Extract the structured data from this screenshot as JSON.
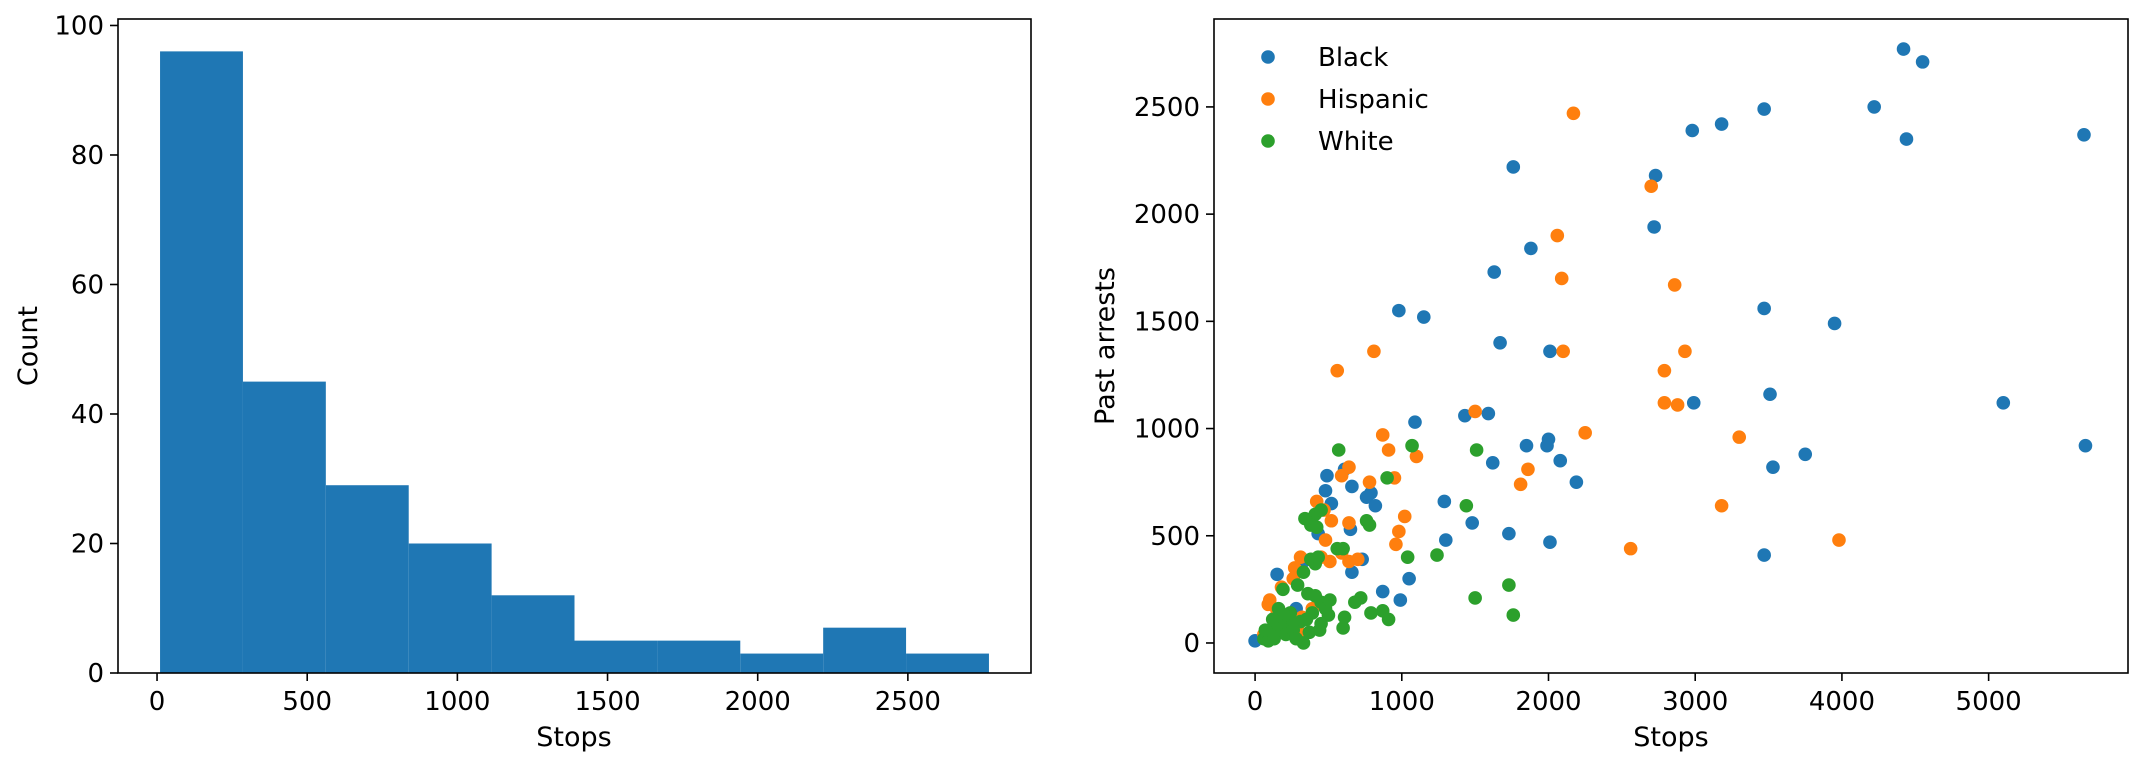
{
  "chart_data": [
    {
      "type": "bar",
      "subtype": "histogram",
      "title": "",
      "xlabel": "Stops",
      "ylabel": "Count",
      "xlim": [
        -130,
        2910
      ],
      "ylim": [
        0,
        101
      ],
      "xticks": [
        0,
        500,
        1000,
        1500,
        2000,
        2500
      ],
      "yticks": [
        0,
        20,
        40,
        60,
        80,
        100
      ],
      "bin_edges": [
        10,
        286,
        562,
        838,
        1114,
        1390,
        1666,
        1942,
        2218,
        2494,
        2770
      ],
      "counts": [
        96,
        45,
        29,
        20,
        12,
        5,
        5,
        3,
        7,
        3
      ],
      "color": "#1f77b4",
      "grid": false
    },
    {
      "type": "scatter",
      "title": "",
      "xlabel": "Stops",
      "ylabel": "Past arrests",
      "xlim": [
        -280,
        5950
      ],
      "ylim": [
        -140,
        2910
      ],
      "xticks": [
        0,
        1000,
        2000,
        3000,
        4000,
        5000
      ],
      "yticks": [
        0,
        500,
        1000,
        1500,
        2000,
        2500
      ],
      "legend_position": "top-left",
      "grid": false,
      "series": [
        {
          "name": "Black",
          "color": "#1f77b4",
          "points": [
            [
              4420,
              2770
            ],
            [
              4550,
              2710
            ],
            [
              4220,
              2500
            ],
            [
              3470,
              2490
            ],
            [
              3180,
              2420
            ],
            [
              2980,
              2390
            ],
            [
              4440,
              2350
            ],
            [
              5650,
              2370
            ],
            [
              1760,
              2220
            ],
            [
              2730,
              2180
            ],
            [
              2720,
              1940
            ],
            [
              1880,
              1840
            ],
            [
              1630,
              1730
            ],
            [
              3470,
              1560
            ],
            [
              3950,
              1490
            ],
            [
              980,
              1550
            ],
            [
              1150,
              1520
            ],
            [
              1670,
              1400
            ],
            [
              2010,
              1360
            ],
            [
              3510,
              1160
            ],
            [
              2990,
              1120
            ],
            [
              5100,
              1120
            ],
            [
              5660,
              920
            ],
            [
              3750,
              880
            ],
            [
              3530,
              820
            ],
            [
              3470,
              410
            ],
            [
              1090,
              1030
            ],
            [
              1430,
              1060
            ],
            [
              1590,
              1070
            ],
            [
              2000,
              950
            ],
            [
              1990,
              920
            ],
            [
              1850,
              920
            ],
            [
              2080,
              850
            ],
            [
              1620,
              840
            ],
            [
              2190,
              750
            ],
            [
              1290,
              660
            ],
            [
              1480,
              560
            ],
            [
              1730,
              510
            ],
            [
              1300,
              480
            ],
            [
              2010,
              470
            ],
            [
              490,
              780
            ],
            [
              480,
              710
            ],
            [
              520,
              650
            ],
            [
              790,
              700
            ],
            [
              660,
              730
            ],
            [
              760,
              680
            ],
            [
              820,
              640
            ],
            [
              730,
              390
            ],
            [
              660,
              330
            ],
            [
              1050,
              300
            ],
            [
              870,
              240
            ],
            [
              990,
              200
            ],
            [
              150,
              320
            ],
            [
              280,
              160
            ],
            [
              200,
              50
            ],
            [
              0,
              10
            ],
            [
              120,
              20
            ],
            [
              330,
              380
            ],
            [
              430,
              510
            ],
            [
              610,
              810
            ],
            [
              650,
              530
            ]
          ]
        },
        {
          "name": "Hispanic",
          "color": "#ff7f0e",
          "points": [
            [
              2170,
              2470
            ],
            [
              2700,
              2130
            ],
            [
              2060,
              1900
            ],
            [
              2090,
              1700
            ],
            [
              2860,
              1670
            ],
            [
              2100,
              1360
            ],
            [
              2930,
              1360
            ],
            [
              2790,
              1270
            ],
            [
              560,
              1270
            ],
            [
              810,
              1360
            ],
            [
              2790,
              1120
            ],
            [
              2880,
              1110
            ],
            [
              1500,
              1080
            ],
            [
              2250,
              980
            ],
            [
              3300,
              960
            ],
            [
              1860,
              810
            ],
            [
              1810,
              740
            ],
            [
              3180,
              640
            ],
            [
              3980,
              480
            ],
            [
              2560,
              440
            ],
            [
              1100,
              870
            ],
            [
              870,
              970
            ],
            [
              910,
              900
            ],
            [
              950,
              770
            ],
            [
              1020,
              590
            ],
            [
              980,
              520
            ],
            [
              960,
              460
            ],
            [
              640,
              820
            ],
            [
              590,
              780
            ],
            [
              520,
              570
            ],
            [
              420,
              660
            ],
            [
              470,
              620
            ],
            [
              450,
              400
            ],
            [
              510,
              380
            ],
            [
              700,
              390
            ],
            [
              640,
              380
            ],
            [
              590,
              420
            ],
            [
              310,
              400
            ],
            [
              270,
              350
            ],
            [
              260,
              300
            ],
            [
              390,
              160
            ],
            [
              320,
              120
            ],
            [
              100,
              200
            ],
            [
              150,
              150
            ],
            [
              200,
              110
            ],
            [
              90,
              180
            ],
            [
              180,
              260
            ],
            [
              220,
              80
            ],
            [
              300,
              50
            ],
            [
              60,
              40
            ],
            [
              780,
              750
            ],
            [
              640,
              560
            ],
            [
              480,
              480
            ]
          ]
        },
        {
          "name": "White",
          "color": "#2ca02c",
          "points": [
            [
              570,
              900
            ],
            [
              1070,
              920
            ],
            [
              1510,
              900
            ],
            [
              900,
              770
            ],
            [
              1440,
              640
            ],
            [
              760,
              570
            ],
            [
              780,
              550
            ],
            [
              1240,
              410
            ],
            [
              1040,
              400
            ],
            [
              1500,
              210
            ],
            [
              1730,
              270
            ],
            [
              1760,
              130
            ],
            [
              790,
              140
            ],
            [
              870,
              150
            ],
            [
              910,
              110
            ],
            [
              720,
              210
            ],
            [
              680,
              190
            ],
            [
              610,
              120
            ],
            [
              600,
              70
            ],
            [
              500,
              130
            ],
            [
              410,
              600
            ],
            [
              340,
              580
            ],
            [
              380,
              550
            ],
            [
              420,
              540
            ],
            [
              450,
              620
            ],
            [
              560,
              440
            ],
            [
              600,
              440
            ],
            [
              380,
              390
            ],
            [
              410,
              370
            ],
            [
              430,
              400
            ],
            [
              330,
              330
            ],
            [
              290,
              270
            ],
            [
              360,
              230
            ],
            [
              410,
              220
            ],
            [
              450,
              190
            ],
            [
              480,
              160
            ],
            [
              390,
              140
            ],
            [
              350,
              110
            ],
            [
              310,
              100
            ],
            [
              250,
              90
            ],
            [
              240,
              140
            ],
            [
              200,
              130
            ],
            [
              170,
              80
            ],
            [
              140,
              60
            ],
            [
              100,
              40
            ],
            [
              60,
              20
            ],
            [
              90,
              10
            ],
            [
              130,
              20
            ],
            [
              210,
              40
            ],
            [
              260,
              60
            ],
            [
              330,
              0
            ],
            [
              450,
              90
            ],
            [
              510,
              200
            ],
            [
              190,
              250
            ],
            [
              160,
              160
            ],
            [
              120,
              110
            ],
            [
              70,
              60
            ],
            [
              280,
              20
            ],
            [
              370,
              50
            ],
            [
              440,
              60
            ]
          ]
        }
      ]
    }
  ]
}
